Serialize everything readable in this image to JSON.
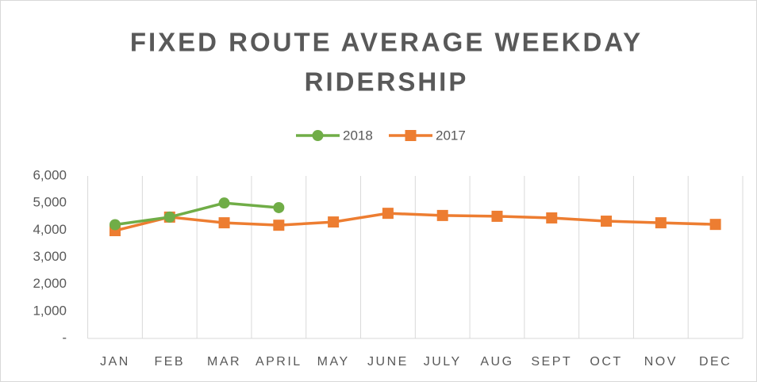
{
  "chart_data": {
    "type": "line",
    "title": [
      "FIXED ROUTE AVERAGE WEEKDAY",
      "RIDERSHIP"
    ],
    "categories": [
      "JAN",
      "FEB",
      "MAR",
      "APRIL",
      "MAY",
      "JUNE",
      "JULY",
      "AUG",
      "SEPT",
      "OCT",
      "NOV",
      "DEC"
    ],
    "series": [
      {
        "name": "2018",
        "color": "#70ad47",
        "marker": "circle",
        "values": [
          4200,
          4480,
          5000,
          4830,
          null,
          null,
          null,
          null,
          null,
          null,
          null,
          null
        ]
      },
      {
        "name": "2017",
        "color": "#ed7d31",
        "marker": "square",
        "values": [
          3980,
          4480,
          4270,
          4180,
          4300,
          4620,
          4540,
          4510,
          4450,
          4330,
          4270,
          4210
        ]
      }
    ],
    "ylim": [
      0,
      6000
    ],
    "yticks": [
      {
        "value": 0,
        "label": "-"
      },
      {
        "value": 1000,
        "label": "1,000"
      },
      {
        "value": 2000,
        "label": "2,000"
      },
      {
        "value": 3000,
        "label": "3,000"
      },
      {
        "value": 4000,
        "label": "4,000"
      },
      {
        "value": 5000,
        "label": "5,000"
      },
      {
        "value": 6000,
        "label": "6,000"
      }
    ],
    "legend": "top"
  }
}
